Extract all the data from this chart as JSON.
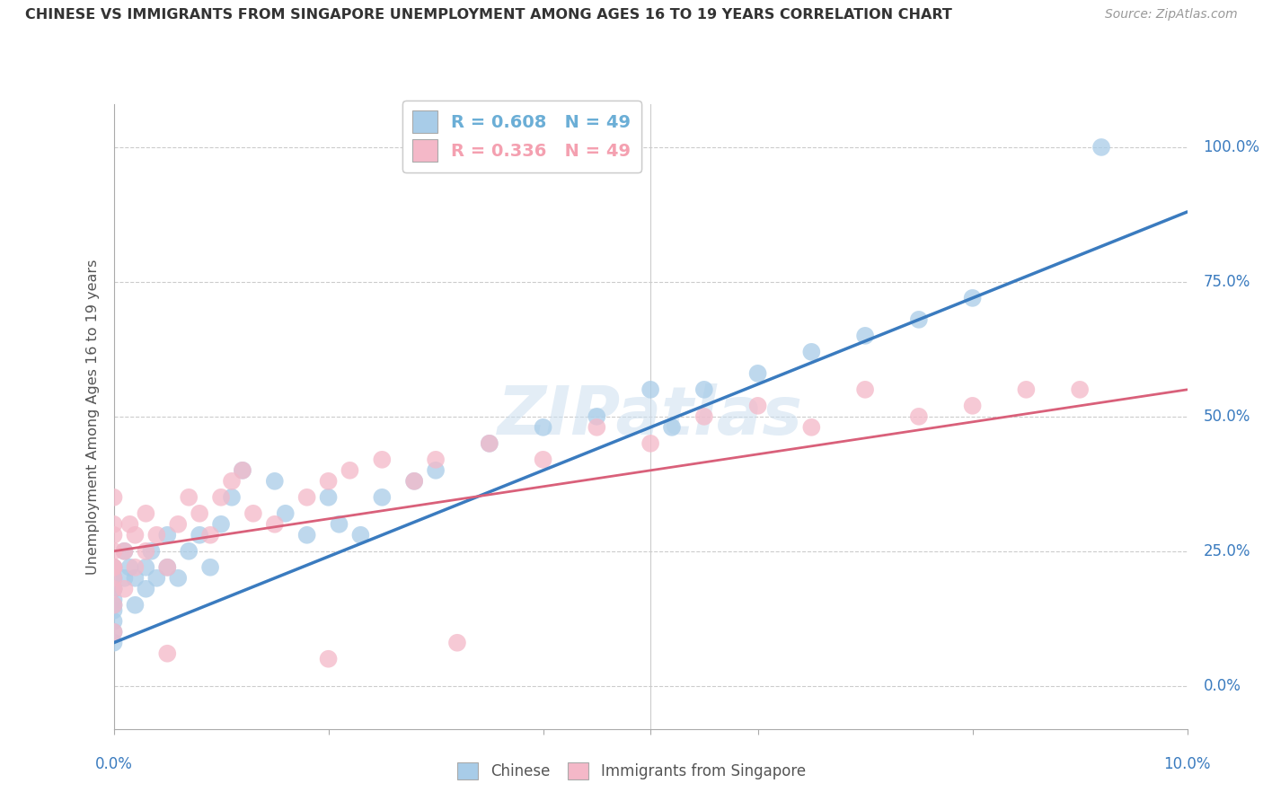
{
  "title": "CHINESE VS IMMIGRANTS FROM SINGAPORE UNEMPLOYMENT AMONG AGES 16 TO 19 YEARS CORRELATION CHART",
  "source": "Source: ZipAtlas.com",
  "ylabel": "Unemployment Among Ages 16 to 19 years",
  "legend_entries": [
    {
      "label": "R = 0.608   N = 49",
      "color": "#6baed6"
    },
    {
      "label": "R = 0.336   N = 49",
      "color": "#f4a0b0"
    }
  ],
  "legend_bottom": [
    "Chinese",
    "Immigrants from Singapore"
  ],
  "blue_color": "#a8cce8",
  "pink_color": "#f4b8c8",
  "blue_line_color": "#3a7bbf",
  "pink_line_color": "#d9607a",
  "watermark": "ZIPatlas",
  "xlim": [
    0.0,
    10.0
  ],
  "ylim": [
    -8.0,
    108.0
  ],
  "yticks": [
    0.0,
    25.0,
    50.0,
    75.0,
    100.0
  ],
  "ytick_labels": [
    "0.0%",
    "25.0%",
    "50.0%",
    "75.0%",
    "100.0%"
  ],
  "blue_line_x0": 0.0,
  "blue_line_y0": 8.0,
  "blue_line_x1": 10.0,
  "blue_line_y1": 88.0,
  "pink_line_x0": 0.0,
  "pink_line_y0": 25.0,
  "pink_line_x1": 10.0,
  "pink_line_y1": 55.0,
  "blue_x": [
    0.0,
    0.0,
    0.0,
    0.0,
    0.0,
    0.0,
    0.0,
    0.0,
    0.0,
    0.0,
    0.1,
    0.1,
    0.15,
    0.2,
    0.2,
    0.3,
    0.3,
    0.35,
    0.4,
    0.5,
    0.5,
    0.6,
    0.7,
    0.8,
    0.9,
    1.0,
    1.1,
    1.2,
    1.5,
    1.6,
    1.8,
    2.0,
    2.1,
    2.3,
    2.5,
    2.8,
    3.0,
    3.5,
    4.0,
    4.5,
    5.0,
    5.2,
    5.5,
    6.0,
    6.5,
    7.0,
    7.5,
    8.0,
    9.2
  ],
  "blue_y": [
    20.0,
    18.0,
    15.0,
    22.0,
    12.0,
    16.0,
    8.0,
    14.0,
    10.0,
    18.0,
    20.0,
    25.0,
    22.0,
    15.0,
    20.0,
    22.0,
    18.0,
    25.0,
    20.0,
    22.0,
    28.0,
    20.0,
    25.0,
    28.0,
    22.0,
    30.0,
    35.0,
    40.0,
    38.0,
    32.0,
    28.0,
    35.0,
    30.0,
    28.0,
    35.0,
    38.0,
    40.0,
    45.0,
    48.0,
    50.0,
    55.0,
    48.0,
    55.0,
    58.0,
    62.0,
    65.0,
    68.0,
    72.0,
    100.0
  ],
  "pink_x": [
    0.0,
    0.0,
    0.0,
    0.0,
    0.0,
    0.0,
    0.0,
    0.0,
    0.0,
    0.0,
    0.1,
    0.1,
    0.15,
    0.2,
    0.2,
    0.3,
    0.3,
    0.4,
    0.5,
    0.6,
    0.7,
    0.8,
    0.9,
    1.0,
    1.1,
    1.3,
    1.5,
    1.8,
    2.0,
    2.2,
    2.5,
    2.8,
    3.0,
    3.5,
    4.0,
    4.5,
    5.0,
    5.5,
    6.0,
    6.5,
    7.0,
    7.5,
    8.0,
    8.5,
    9.0,
    2.0,
    1.2,
    0.5,
    3.2
  ],
  "pink_y": [
    22.0,
    30.0,
    18.0,
    25.0,
    15.0,
    20.0,
    10.0,
    28.0,
    35.0,
    22.0,
    25.0,
    18.0,
    30.0,
    22.0,
    28.0,
    25.0,
    32.0,
    28.0,
    22.0,
    30.0,
    35.0,
    32.0,
    28.0,
    35.0,
    38.0,
    32.0,
    30.0,
    35.0,
    38.0,
    40.0,
    42.0,
    38.0,
    42.0,
    45.0,
    42.0,
    48.0,
    45.0,
    50.0,
    52.0,
    48.0,
    55.0,
    50.0,
    52.0,
    55.0,
    55.0,
    5.0,
    40.0,
    6.0,
    8.0
  ]
}
